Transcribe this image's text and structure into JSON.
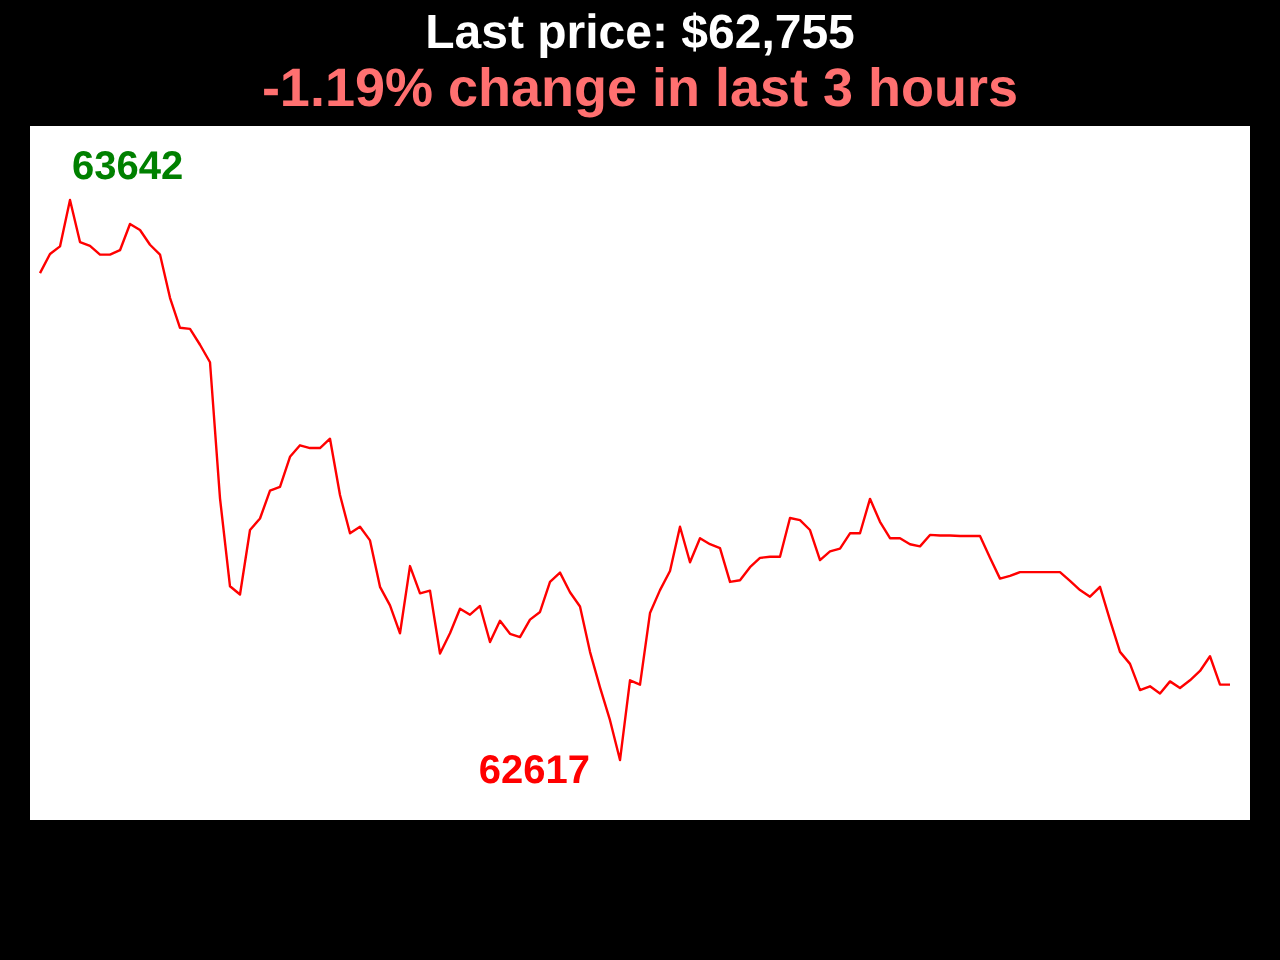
{
  "chart_data": {
    "type": "line",
    "title": "Last price: $62,755",
    "subtitle": "-1.19% change in last 3 hours",
    "categories": [
      null,
      null,
      null,
      null,
      null,
      null,
      null,
      null,
      null,
      null,
      null,
      null,
      null,
      null,
      null,
      null,
      null,
      null,
      null,
      null,
      null,
      null,
      null,
      null,
      null,
      null,
      null,
      null,
      null,
      null,
      null,
      null,
      null,
      null,
      null,
      null,
      null,
      null,
      null,
      null,
      null,
      null,
      null,
      null,
      null,
      null,
      null,
      null,
      null,
      null,
      null,
      null,
      null,
      null,
      null,
      null,
      null,
      null,
      null,
      null,
      null,
      null,
      null,
      null,
      null,
      null,
      null,
      null,
      null,
      null,
      null,
      null,
      null,
      null,
      null,
      null,
      null,
      null,
      null,
      null,
      null,
      null,
      null,
      null,
      null,
      null,
      null,
      null,
      null,
      null,
      null,
      null,
      null,
      null,
      null,
      null,
      null,
      null,
      null,
      null,
      null,
      null,
      null,
      null,
      null,
      null,
      null,
      null,
      null,
      null,
      null,
      null,
      null,
      null,
      null,
      null,
      null,
      null,
      null,
      null
    ],
    "values": [
      63508,
      63543,
      63557,
      63642,
      63565,
      63558,
      63542,
      63542,
      63550,
      63598,
      63587,
      63560,
      63542,
      63463,
      63408,
      63406,
      63377,
      63345,
      63096,
      62935,
      62920,
      63038,
      63059,
      63110,
      63117,
      63172,
      63193,
      63188,
      63188,
      63205,
      63102,
      63032,
      63044,
      63019,
      62934,
      62900,
      62849,
      62972,
      62922,
      62927,
      62812,
      62849,
      62894,
      62883,
      62899,
      62833,
      62872,
      62848,
      62842,
      62874,
      62888,
      62943,
      62960,
      62924,
      62898,
      62815,
      62750,
      62690,
      62617,
      62763,
      62755,
      62886,
      62928,
      62963,
      63044,
      62979,
      63023,
      63012,
      63005,
      62943,
      62946,
      62970,
      62987,
      62989,
      62989,
      63060,
      63056,
      63038,
      62983,
      62999,
      63004,
      63032,
      63032,
      63095,
      63053,
      63023,
      63023,
      63012,
      63008,
      63029,
      63028,
      63028,
      63027,
      63027,
      63027,
      62987,
      62949,
      62954,
      62961,
      62961,
      62961,
      62961,
      62961,
      62945,
      62928,
      62916,
      62934,
      62873,
      62815,
      62793,
      62745,
      62752,
      62739,
      62761,
      62749,
      62763,
      62780,
      62807,
      62755,
      62755
    ],
    "value_labels": [
      null,
      null,
      null,
      "63642",
      null,
      null,
      null,
      null,
      null,
      null,
      null,
      null,
      null,
      null,
      null,
      null,
      null,
      null,
      null,
      null,
      null,
      null,
      null,
      null,
      null,
      null,
      null,
      null,
      null,
      null,
      null,
      null,
      null,
      null,
      null,
      null,
      null,
      null,
      null,
      null,
      null,
      null,
      null,
      null,
      null,
      null,
      null,
      null,
      null,
      null,
      null,
      null,
      null,
      null,
      null,
      null,
      null,
      null,
      "62617",
      null,
      null,
      null,
      null,
      null,
      null,
      null,
      null,
      null,
      null,
      null,
      null,
      null,
      null,
      null,
      null,
      null,
      null,
      null,
      null,
      null,
      null,
      null,
      null,
      null,
      null,
      null,
      null,
      null,
      null,
      null,
      null,
      null,
      null,
      null,
      null,
      null,
      null,
      null,
      null,
      null,
      null,
      null,
      null,
      null,
      null,
      null,
      null,
      null,
      null,
      null,
      null,
      null,
      null,
      null,
      null,
      null,
      null,
      null,
      null,
      null
    ],
    "color": "#ff0000",
    "tick_labels": false
  }
}
